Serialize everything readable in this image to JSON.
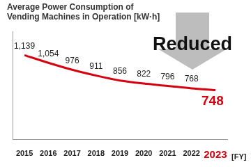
{
  "chart_data": {
    "type": "line",
    "title": [
      "Average Power Consumption of",
      "Vending Machines in Operation [kW·h]"
    ],
    "x_label": "[FY]",
    "categories": [
      "2015",
      "2016",
      "2017",
      "2018",
      "2019",
      "2020",
      "2021",
      "2022",
      "2023"
    ],
    "values": [
      1139,
      1054,
      976,
      911,
      856,
      822,
      796,
      768,
      748
    ],
    "value_labels": [
      "1,139",
      "1,054",
      "976",
      "911",
      "856",
      "822",
      "796",
      "768",
      "748"
    ],
    "color": "#d7000f",
    "ylim": [
      200,
      1400
    ],
    "grid": false,
    "data_labels": true,
    "tick_labels": "x",
    "annotations": [
      {
        "text": "Reduced"
      }
    ]
  }
}
